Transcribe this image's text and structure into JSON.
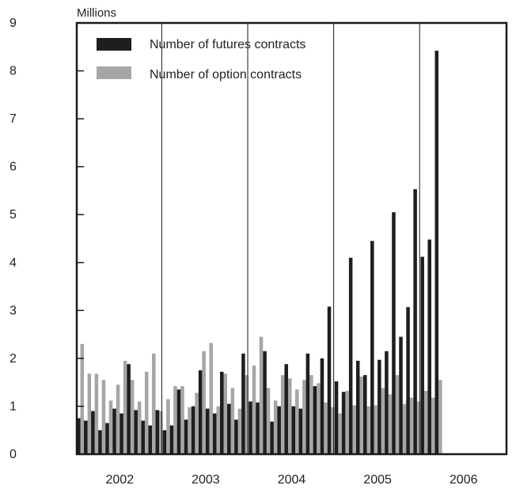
{
  "chart_data": {
    "type": "bar",
    "unit_label": "Millions",
    "ylim": [
      0,
      9
    ],
    "yticks": [
      0,
      1,
      2,
      3,
      4,
      5,
      6,
      7,
      8,
      9
    ],
    "year_labels": [
      "2002",
      "2003",
      "2004",
      "2005",
      "2006"
    ],
    "year_dividers_after_month": [
      12,
      24,
      36,
      48
    ],
    "months_total": 60,
    "legend": [
      {
        "series": "futures",
        "label": "Number of futures contracts"
      },
      {
        "series": "options",
        "label": "Number of option contracts"
      }
    ],
    "colors": {
      "futures": "#1e1e1e",
      "options": "#a6a6a6"
    },
    "series": [
      {
        "key": "futures",
        "name": "Number of futures contracts",
        "values": [
          0.75,
          0.7,
          0.9,
          0.5,
          0.65,
          0.95,
          0.85,
          1.88,
          0.92,
          0.7,
          0.6,
          0.92,
          0.5,
          0.6,
          1.35,
          0.72,
          1.0,
          1.75,
          0.95,
          0.85,
          1.72,
          1.05,
          0.72,
          2.1,
          1.1,
          1.08,
          2.15,
          0.68,
          1.0,
          1.88,
          1.0,
          0.95,
          2.1,
          1.42,
          2.0,
          3.08,
          1.52,
          1.3,
          4.1,
          1.95,
          1.65,
          4.45,
          1.97,
          2.15,
          5.05,
          2.45,
          3.07,
          5.53,
          4.12,
          4.48,
          8.42
        ]
      },
      {
        "key": "options",
        "name": "Number of option contracts",
        "values": [
          2.3,
          1.68,
          1.68,
          1.55,
          1.12,
          1.45,
          1.95,
          1.55,
          1.1,
          1.72,
          2.1,
          0.9,
          1.15,
          1.42,
          1.42,
          0.98,
          1.28,
          2.15,
          2.32,
          1.0,
          1.68,
          1.38,
          0.95,
          1.65,
          1.85,
          2.45,
          1.38,
          1.12,
          1.65,
          1.58,
          1.35,
          1.55,
          1.65,
          1.48,
          1.08,
          0.98,
          0.85,
          1.32,
          1.02,
          1.62,
          1.0,
          1.02,
          1.38,
          1.25,
          1.65,
          1.05,
          1.18,
          1.1,
          1.32,
          1.18,
          1.55
        ]
      }
    ]
  }
}
